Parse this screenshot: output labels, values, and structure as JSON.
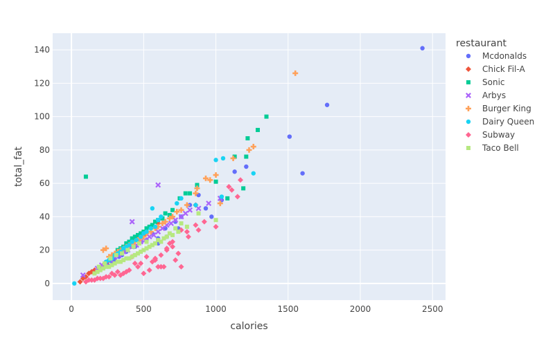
{
  "chart_data": {
    "type": "scatter",
    "title": "",
    "xlabel": "calories",
    "ylabel": "total_fat",
    "xlim": [
      -130,
      2590
    ],
    "ylim": [
      -10,
      150
    ],
    "x_ticks": [
      0,
      500,
      1000,
      1500,
      2000,
      2500
    ],
    "y_ticks": [
      0,
      20,
      40,
      60,
      80,
      100,
      120,
      140
    ],
    "grid": true,
    "legend": {
      "title": "restaurant",
      "placement": "right"
    },
    "series": [
      {
        "name": "Mcdonalds",
        "color": "#636efa",
        "marker": "circle",
        "x": [
          2430,
          1770,
          1510,
          1600,
          1210,
          1130,
          1040,
          970,
          930,
          880,
          820,
          760,
          720,
          650,
          600,
          560,
          520,
          480,
          440,
          420,
          380,
          350,
          330,
          300,
          280,
          250,
          230,
          200,
          600,
          660,
          740
        ],
        "y": [
          141,
          107,
          88,
          66,
          70,
          67,
          50,
          40,
          45,
          53,
          47,
          40,
          37,
          33,
          27,
          30,
          26,
          25,
          22,
          22,
          19,
          17,
          16,
          14,
          13,
          11,
          10,
          9,
          24,
          28,
          33
        ]
      },
      {
        "name": "Chick Fil-A",
        "color": "#ef553b",
        "marker": "diamond",
        "x": [
          860,
          600,
          500,
          450,
          430,
          400,
          380,
          350,
          330,
          310,
          290,
          270,
          250,
          220,
          190,
          160,
          140,
          120,
          100,
          80,
          60
        ],
        "y": [
          47,
          36,
          29,
          27,
          26,
          24,
          22,
          20,
          19,
          18,
          16,
          15,
          13,
          11,
          9,
          8,
          7,
          6,
          4,
          3,
          1
        ]
      },
      {
        "name": "Sonic",
        "color": "#00cc96",
        "marker": "square",
        "x": [
          100,
          1350,
          1290,
          1220,
          1210,
          1130,
          1190,
          1080,
          1000,
          870,
          820,
          790,
          750,
          700,
          680,
          650,
          630,
          600,
          580,
          560,
          540,
          520,
          500,
          480,
          460,
          440,
          420,
          400,
          380,
          360,
          340,
          320
        ],
        "y": [
          64,
          100,
          92,
          87,
          76,
          76,
          57,
          51,
          61,
          59,
          54,
          54,
          51,
          44,
          41,
          42,
          39,
          38,
          37,
          35,
          34,
          33,
          31,
          30,
          29,
          28,
          27,
          25,
          24,
          22,
          21,
          20
        ]
      },
      {
        "name": "Arbys",
        "color": "#ab63fa",
        "marker": "x",
        "x": [
          600,
          420,
          80,
          1030,
          950,
          880,
          820,
          790,
          760,
          720,
          690,
          660,
          630,
          600,
          570,
          540,
          510,
          480,
          450,
          420,
          390,
          360,
          330,
          300,
          270,
          240,
          210,
          180
        ],
        "y": [
          59,
          37,
          5,
          51,
          48,
          45,
          44,
          42,
          40,
          38,
          36,
          35,
          33,
          31,
          29,
          28,
          26,
          25,
          23,
          22,
          20,
          19,
          17,
          16,
          14,
          12,
          11,
          9
        ]
      },
      {
        "name": "Burger King",
        "color": "#ffa15a",
        "marker": "cross",
        "x": [
          1550,
          1260,
          1230,
          1120,
          1030,
          1000,
          960,
          930,
          870,
          860,
          800,
          760,
          730,
          700,
          680,
          650,
          630,
          600,
          580,
          550,
          520,
          500,
          480,
          460,
          440,
          420,
          400,
          380,
          360,
          340,
          320,
          300,
          280,
          260,
          240,
          220
        ],
        "y": [
          126,
          82,
          80,
          75,
          48,
          65,
          62,
          63,
          57,
          54,
          47,
          44,
          43,
          40,
          39,
          37,
          36,
          34,
          33,
          31,
          30,
          28,
          27,
          26,
          25,
          24,
          23,
          22,
          21,
          20,
          19,
          18,
          17,
          16,
          21,
          20
        ]
      },
      {
        "name": "Dairy Queen",
        "color": "#19d3f3",
        "marker": "circle",
        "x": [
          20,
          1260,
          1050,
          1000,
          1040,
          860,
          760,
          730,
          560,
          620,
          600,
          580,
          550,
          520,
          500,
          480,
          450,
          420,
          400,
          380,
          360,
          340,
          320,
          300,
          280,
          260,
          240
        ],
        "y": [
          0,
          66,
          75,
          74,
          52,
          47,
          51,
          48,
          45,
          40,
          38,
          34,
          33,
          31,
          30,
          28,
          26,
          25,
          23,
          22,
          21,
          19,
          18,
          17,
          15,
          14,
          13
        ]
      },
      {
        "name": "Subway",
        "color": "#ff6692",
        "marker": "diamond",
        "x": [
          1170,
          1150,
          1110,
          1090,
          1000,
          920,
          880,
          860,
          810,
          800,
          760,
          740,
          720,
          700,
          680,
          660,
          640,
          620,
          600,
          580,
          560,
          540,
          520,
          500,
          480,
          460,
          440,
          420,
          400,
          380,
          360,
          340,
          320,
          300,
          280,
          260,
          240,
          220,
          200,
          180,
          160,
          140,
          120,
          100,
          760,
          700,
          660,
          620,
          580
        ],
        "y": [
          62,
          52,
          56,
          58,
          34,
          37,
          32,
          35,
          28,
          31,
          10,
          18,
          14,
          22,
          24,
          20,
          10,
          10,
          10,
          14,
          13,
          8,
          16,
          6,
          12,
          10,
          12,
          16,
          8,
          7,
          6,
          5,
          7,
          5,
          6,
          4,
          4,
          3,
          3,
          3,
          2,
          2,
          2,
          1,
          32,
          25,
          21,
          17,
          15
        ]
      },
      {
        "name": "Taco Bell",
        "color": "#b6e880",
        "marker": "square",
        "x": [
          1000,
          880,
          800,
          760,
          740,
          720,
          700,
          680,
          660,
          640,
          620,
          600,
          580,
          560,
          540,
          520,
          500,
          480,
          460,
          440,
          420,
          400,
          380,
          360,
          340,
          320,
          300,
          280,
          260,
          240,
          220,
          200,
          180,
          160,
          520,
          470,
          430,
          390,
          350,
          310,
          270,
          230,
          190
        ],
        "y": [
          38,
          42,
          34,
          36,
          31,
          33,
          29,
          30,
          28,
          27,
          25,
          26,
          24,
          23,
          22,
          21,
          20,
          19,
          18,
          17,
          16,
          15,
          15,
          14,
          13,
          13,
          12,
          11,
          10,
          10,
          9,
          8,
          7,
          6,
          25,
          24,
          22,
          20,
          18,
          17,
          15,
          12,
          10
        ]
      }
    ]
  }
}
